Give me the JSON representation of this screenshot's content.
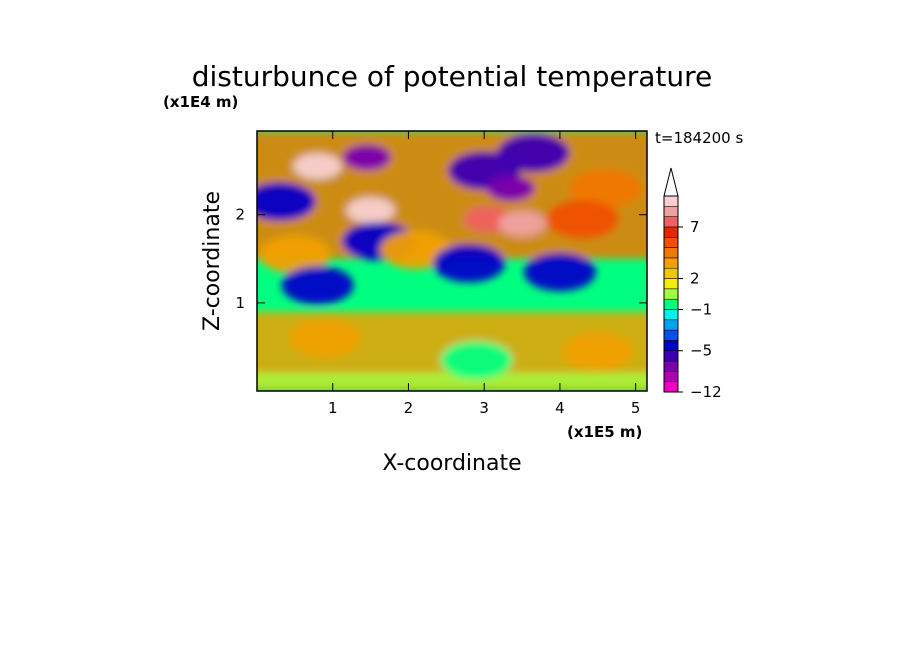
{
  "chart_data": {
    "type": "heatmap",
    "title": "disturbunce of potential temperature",
    "xlabel": "X-coordinate",
    "ylabel": "Z-coordinate",
    "x_unit": "(x1E5 m)",
    "y_unit": "(x1E4 m)",
    "time_label": "t=184200 s",
    "xlim": [
      0,
      5.15
    ],
    "ylim": [
      0,
      2.95
    ],
    "x_ticks": [
      1,
      2,
      3,
      4,
      5
    ],
    "y_ticks": [
      1,
      2
    ],
    "colorbar": {
      "tick_labels": [
        {
          "value": 7,
          "label": "7"
        },
        {
          "value": 2,
          "label": "2"
        },
        {
          "value": -1,
          "label": "−1"
        },
        {
          "value": -5,
          "label": "−5"
        },
        {
          "value": -12,
          "label": "−12"
        }
      ],
      "levels": [
        -12,
        -10,
        -8,
        -6,
        -5,
        -4,
        -3,
        -2,
        -1,
        0,
        1,
        2,
        3,
        4,
        5,
        6,
        7,
        8,
        9,
        10
      ],
      "colors": [
        "#f000c0",
        "#b000b0",
        "#7800b0",
        "#3c00b4",
        "#0000c8",
        "#0050f0",
        "#00a0f0",
        "#00f0f0",
        "#00ff80",
        "#a0ff40",
        "#f0f000",
        "#f0c800",
        "#f0a000",
        "#f07800",
        "#f05000",
        "#e62800",
        "#f06060",
        "#f0a0a0",
        "#f8d0d0"
      ],
      "extend_max": true
    },
    "features": [
      {
        "x": 0.8,
        "z": 2.55,
        "value": 9
      },
      {
        "x": 1.5,
        "z": 2.05,
        "value": 9
      },
      {
        "x": 1.45,
        "z": 2.65,
        "value": -8
      },
      {
        "x": 0.3,
        "z": 2.15,
        "value": -5
      },
      {
        "x": 1.6,
        "z": 1.7,
        "value": -5
      },
      {
        "x": 0.5,
        "z": 1.55,
        "value": 3
      },
      {
        "x": 2.1,
        "z": 1.6,
        "value": 3
      },
      {
        "x": 3.0,
        "z": 2.5,
        "value": -6
      },
      {
        "x": 3.35,
        "z": 2.3,
        "value": -8
      },
      {
        "x": 3.65,
        "z": 2.7,
        "value": -6
      },
      {
        "x": 3.05,
        "z": 1.95,
        "value": 7
      },
      {
        "x": 3.5,
        "z": 1.9,
        "value": 8
      },
      {
        "x": 4.6,
        "z": 2.3,
        "value": 4
      },
      {
        "x": 4.3,
        "z": 1.95,
        "value": 5
      },
      {
        "x": 4.0,
        "z": 1.35,
        "value": -5
      },
      {
        "x": 2.8,
        "z": 1.45,
        "value": -5
      },
      {
        "x": 0.8,
        "z": 1.2,
        "value": -5
      },
      {
        "x": 0.9,
        "z": 0.6,
        "value": 3
      },
      {
        "x": 4.5,
        "z": 0.45,
        "value": 3
      },
      {
        "x": 2.9,
        "z": 0.35,
        "value": -1
      }
    ]
  }
}
